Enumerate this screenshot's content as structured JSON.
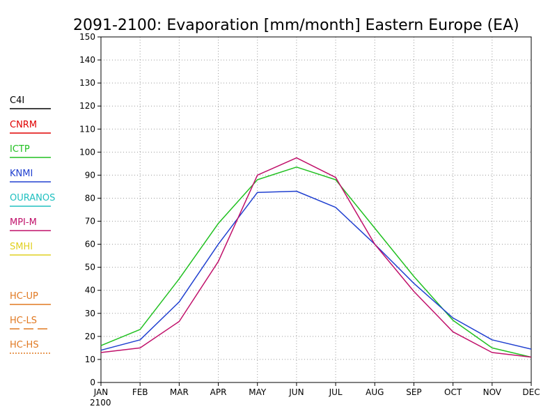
{
  "chart_data": {
    "type": "line",
    "title": "2091-2100: Evaporation [mm/month] Eastern Europe (EA)",
    "xlabel": "",
    "ylabel": "",
    "categories": [
      "JAN",
      "FEB",
      "MAR",
      "APR",
      "MAY",
      "JUN",
      "JUL",
      "AUG",
      "SEP",
      "OCT",
      "NOV",
      "DEC"
    ],
    "x_year_label": "2100",
    "ylim": [
      0,
      150
    ],
    "yticks": [
      0,
      10,
      20,
      30,
      40,
      50,
      60,
      70,
      80,
      90,
      100,
      110,
      120,
      130,
      140,
      150
    ],
    "grid": true,
    "legend_position": "left",
    "legend": [
      {
        "name": "C4I",
        "color": "#000000",
        "dash": "solid"
      },
      {
        "name": "CNRM",
        "color": "#e00000",
        "dash": "solid"
      },
      {
        "name": "ICTP",
        "color": "#20c020",
        "dash": "solid"
      },
      {
        "name": "KNMI",
        "color": "#2040d0",
        "dash": "solid"
      },
      {
        "name": "OURANOS",
        "color": "#20c0c0",
        "dash": "solid"
      },
      {
        "name": "MPI-M",
        "color": "#c0106a",
        "dash": "solid"
      },
      {
        "name": "SMHI",
        "color": "#e0d020",
        "dash": "solid"
      },
      {
        "name": "HC-UP",
        "color": "#e07820",
        "dash": "solid"
      },
      {
        "name": "HC-LS",
        "color": "#e07820",
        "dash": "longdash"
      },
      {
        "name": "HC-HS",
        "color": "#e07820",
        "dash": "dotted"
      }
    ],
    "series": [
      {
        "name": "ICTP",
        "color": "#20c020",
        "values": [
          16,
          23,
          45,
          69,
          88,
          93.5,
          88,
          67,
          46,
          27,
          15,
          11
        ]
      },
      {
        "name": "KNMI",
        "color": "#2040d0",
        "values": [
          14,
          18.5,
          35,
          60,
          82.5,
          83,
          76,
          60,
          43,
          28,
          18.5,
          14.5
        ]
      },
      {
        "name": "MPI-M",
        "color": "#c0106a",
        "values": [
          13,
          15,
          26.5,
          52.5,
          90,
          97.5,
          89,
          60,
          39.5,
          22,
          13,
          11
        ]
      }
    ]
  }
}
